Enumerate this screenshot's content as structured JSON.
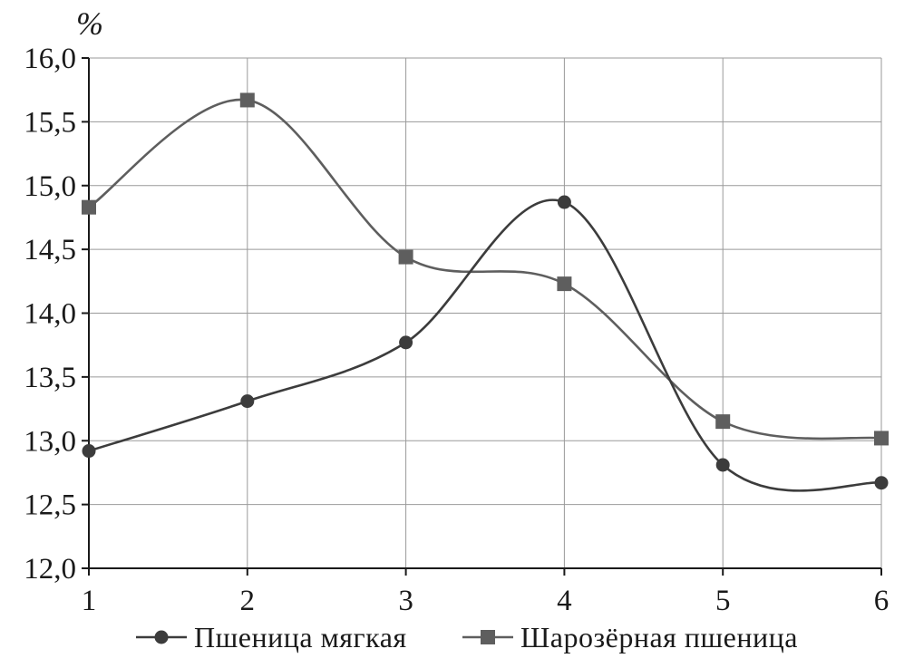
{
  "chart_data": {
    "type": "line",
    "title": "",
    "xlabel": "",
    "ylabel": "%",
    "x": [
      1,
      2,
      3,
      4,
      5,
      6
    ],
    "x_tick_labels": [
      "1",
      "2",
      "3",
      "4",
      "5",
      "6"
    ],
    "y_tick_labels": [
      "12,0",
      "12,5",
      "13,0",
      "13,5",
      "14,0",
      "14,5",
      "15,0",
      "15,5",
      "16,0"
    ],
    "ylim": [
      12.0,
      16.0
    ],
    "xlim": [
      1,
      6
    ],
    "grid": true,
    "smooth": true,
    "legend_position": "bottom",
    "series": [
      {
        "name": "Пшеница мягкая",
        "marker": "circle",
        "color": "#3c3c3c",
        "values": [
          12.92,
          13.31,
          13.77,
          14.87,
          12.81,
          12.67
        ]
      },
      {
        "name": "Шарозёрная пшеница",
        "marker": "square",
        "color": "#5e5e5e",
        "values": [
          14.83,
          15.67,
          14.44,
          14.23,
          13.15,
          13.02
        ]
      }
    ]
  }
}
